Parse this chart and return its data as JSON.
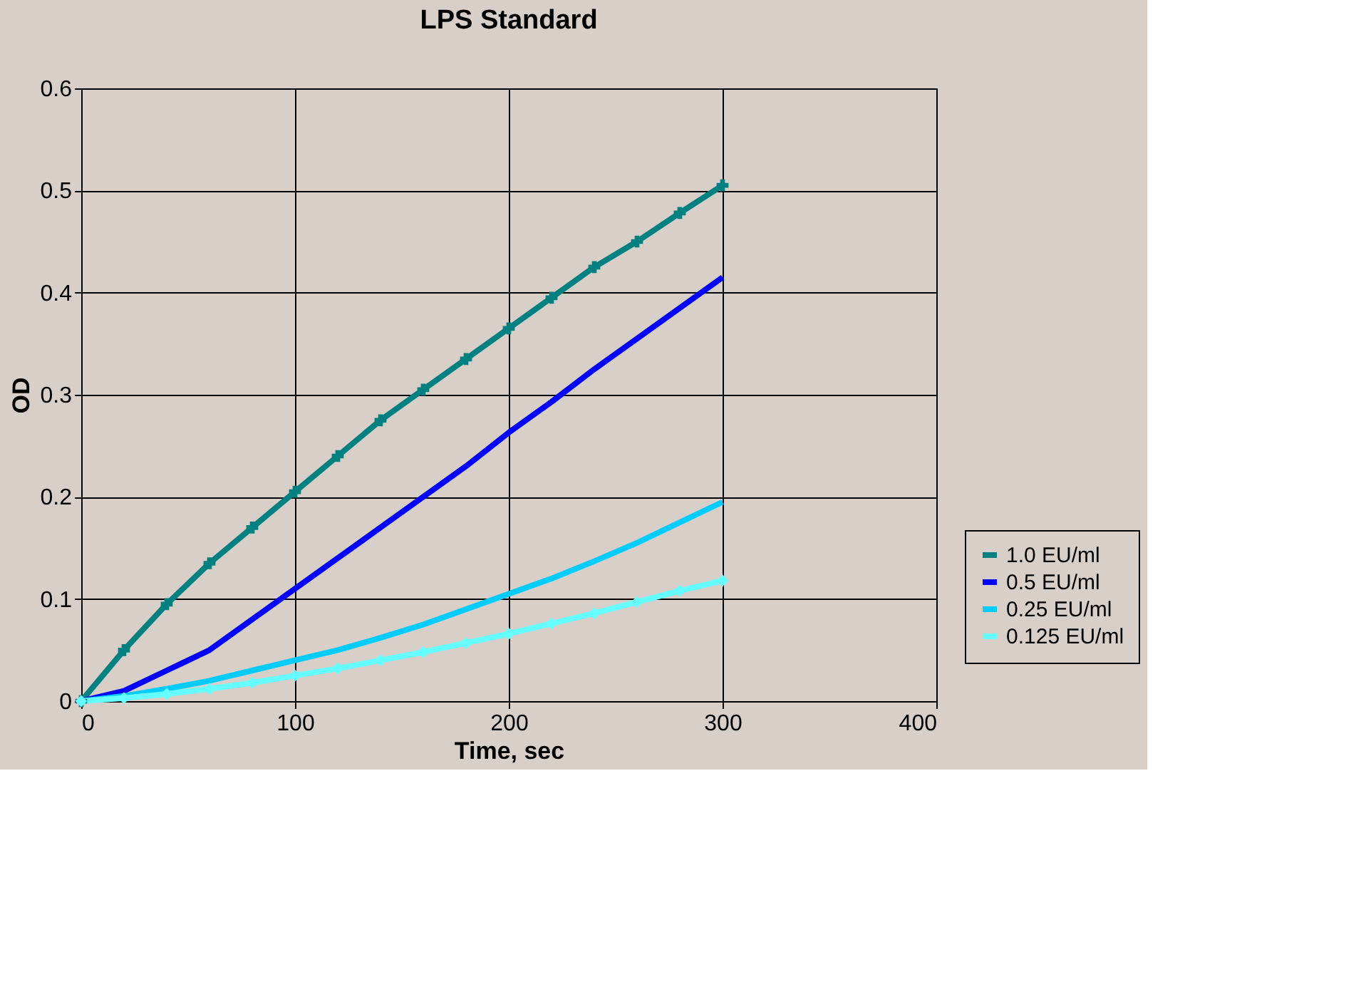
{
  "chart_data": {
    "type": "line",
    "title": "LPS Standard",
    "xlabel": "Time, sec",
    "ylabel": "OD",
    "x": [
      0,
      20,
      40,
      60,
      80,
      100,
      120,
      140,
      160,
      180,
      200,
      220,
      240,
      260,
      280,
      300
    ],
    "series": [
      {
        "name": "1.0 EU/ml",
        "color": "#008080",
        "marker": "cross",
        "values": [
          0,
          0.05,
          0.095,
          0.135,
          0.17,
          0.205,
          0.24,
          0.275,
          0.305,
          0.335,
          0.365,
          0.395,
          0.425,
          0.45,
          0.478,
          0.505
        ]
      },
      {
        "name": "0.5 EU/ml",
        "color": "#0000ff",
        "marker": "none",
        "values": [
          0,
          0.01,
          0.03,
          0.05,
          0.08,
          0.11,
          0.14,
          0.17,
          0.2,
          0.23,
          0.263,
          0.293,
          0.325,
          0.355,
          0.385,
          0.415
        ]
      },
      {
        "name": "0.25 EU/ml",
        "color": "#00ccff",
        "marker": "none",
        "values": [
          0,
          0.005,
          0.012,
          0.02,
          0.03,
          0.04,
          0.05,
          0.062,
          0.075,
          0.09,
          0.105,
          0.12,
          0.137,
          0.155,
          0.175,
          0.195
        ]
      },
      {
        "name": "0.125 EU/ml",
        "color": "#66ffff",
        "marker": "diamond",
        "values": [
          0,
          0.003,
          0.007,
          0.012,
          0.018,
          0.025,
          0.032,
          0.04,
          0.048,
          0.057,
          0.066,
          0.076,
          0.086,
          0.097,
          0.108,
          0.118
        ]
      }
    ],
    "xlim": [
      0,
      400
    ],
    "xticks": [
      0,
      100,
      200,
      300,
      400
    ],
    "ylim": [
      0,
      0.6
    ],
    "yticks": [
      0,
      0.1,
      0.2,
      0.3,
      0.4,
      0.5,
      0.6
    ],
    "grid": true,
    "legend": "bottom right"
  }
}
